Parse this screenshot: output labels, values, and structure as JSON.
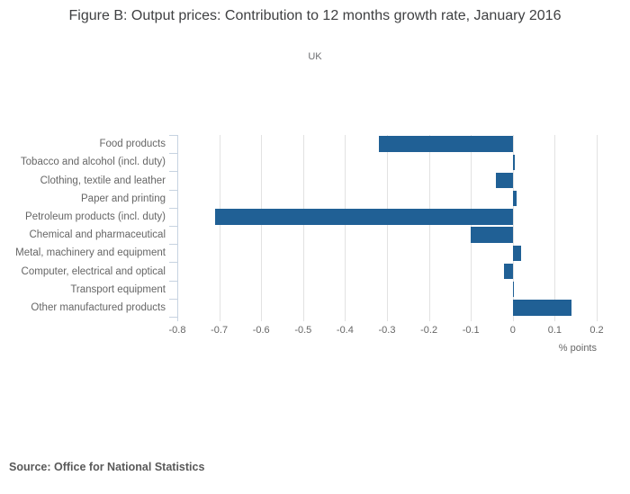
{
  "chart_data": {
    "type": "bar",
    "orientation": "horizontal",
    "title": "Figure B: Output prices: Contribution to 12 months growth rate, January 2016",
    "subtitle": "UK",
    "categories": [
      "Food products",
      "Tobacco and alcohol (incl. duty)",
      "Clothing, textile and leather",
      "Paper and printing",
      "Petroleum products (incl. duty)",
      "Chemical and pharmaceutical",
      "Metal, machinery and equipment",
      "Computer, electrical and optical",
      "Transport equipment",
      "Other manufactured products"
    ],
    "values": [
      -0.32,
      0.005,
      -0.04,
      0.01,
      -0.71,
      -0.1,
      0.02,
      -0.02,
      0.003,
      0.14
    ],
    "xlabel": "% points",
    "ylabel": "",
    "xlim": [
      -0.8,
      0.2
    ],
    "xticks": [
      -0.8,
      -0.7,
      -0.6,
      -0.5,
      -0.4,
      -0.3,
      -0.2,
      -0.1,
      0,
      0.1,
      0.2
    ],
    "xtick_labels": [
      "-0.8",
      "-0.7",
      "-0.6",
      "-0.5",
      "-0.4",
      "-0.3",
      "-0.2",
      "-0.1",
      "0",
      "0.1",
      "0.2"
    ],
    "grid": true,
    "legend": false,
    "colors": {
      "bar": "#206095",
      "grid": "#e2e2e2",
      "axis": "#c7d3e1",
      "title_text": "#3f4042",
      "label_text": "#666666"
    }
  },
  "footer": {
    "source": "Source: Office for National Statistics"
  }
}
